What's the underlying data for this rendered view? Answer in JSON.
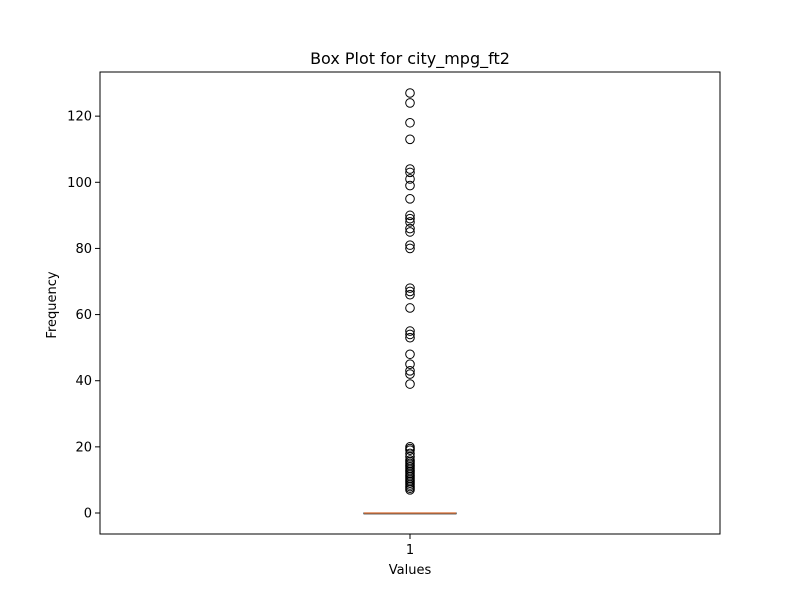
{
  "chart_data": {
    "type": "box",
    "title": "Box Plot for city_mpg_ft2",
    "xlabel": "Values",
    "ylabel": "Frequency",
    "categories": [
      "1"
    ],
    "y_ticks": [
      0,
      20,
      40,
      60,
      80,
      100,
      120
    ],
    "ylim": [
      -6.35,
      133.35
    ],
    "box": {
      "min": 0,
      "q1": 0,
      "median": 0,
      "q3": 0,
      "max": 0
    },
    "outliers": [
      7,
      7.5,
      8,
      8.5,
      9,
      9.5,
      10,
      10.5,
      11,
      11.5,
      12,
      12.5,
      13,
      13.5,
      14,
      14.5,
      15,
      15.5,
      16,
      17,
      18,
      19,
      19.5,
      20,
      39,
      42,
      43,
      45,
      48,
      53,
      54,
      55,
      62,
      66,
      67,
      68,
      80,
      81,
      85,
      86,
      88,
      89,
      90,
      95,
      99,
      101,
      103,
      104,
      113,
      118,
      124,
      127
    ],
    "grid": false,
    "colors": {
      "median": "#dd8452",
      "box": "#000000",
      "outlier": "#000000"
    }
  }
}
